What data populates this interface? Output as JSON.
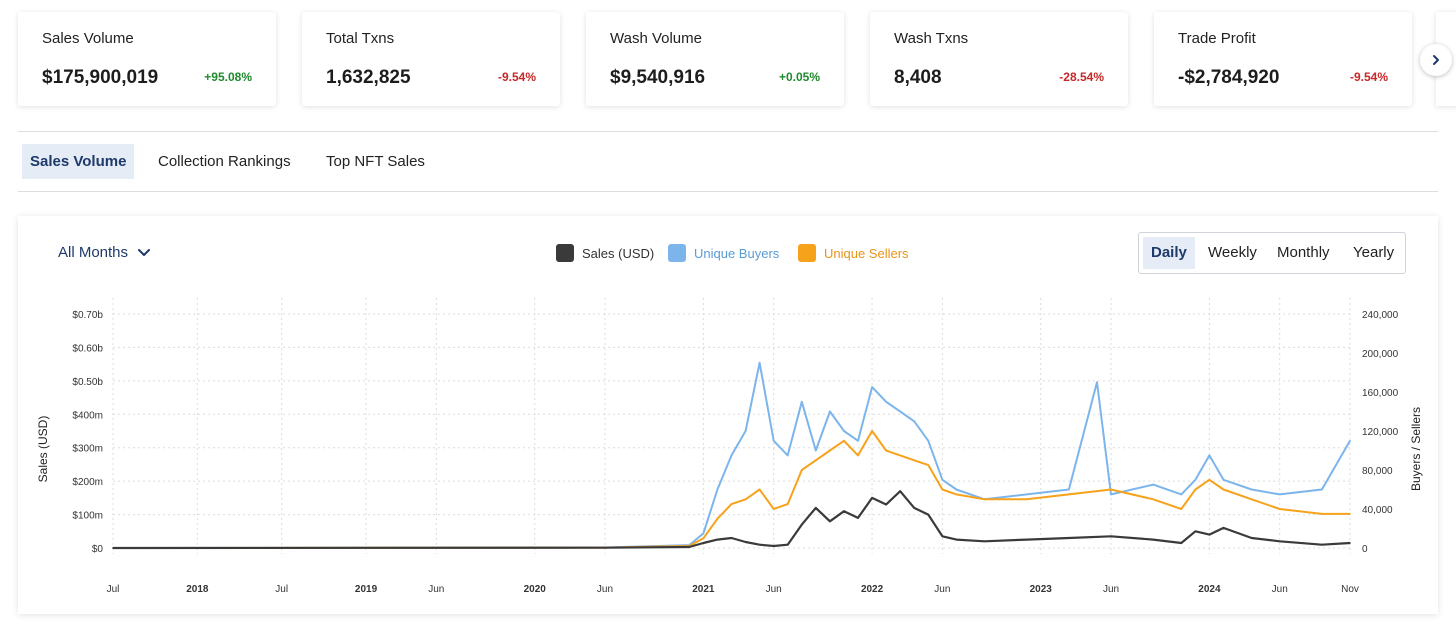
{
  "stats": [
    {
      "label": "Sales Volume",
      "value": "$175,900,019",
      "delta": "+95.08%",
      "positive": true
    },
    {
      "label": "Total Txns",
      "value": "1,632,825",
      "delta": "-9.54%",
      "positive": false
    },
    {
      "label": "Wash Volume",
      "value": "$9,540,916",
      "delta": "+0.05%",
      "positive": true
    },
    {
      "label": "Wash Txns",
      "value": "8,408",
      "delta": "-28.54%",
      "positive": false
    },
    {
      "label": "Trade Profit",
      "value": "-$2,784,920",
      "delta": "-9.54%",
      "positive": false
    }
  ],
  "tabs": [
    "Sales Volume",
    "Collection Rankings",
    "Top NFT Sales"
  ],
  "controls": {
    "months_dropdown": "All Months",
    "periods": [
      "Daily",
      "Weekly",
      "Monthly",
      "Yearly"
    ]
  },
  "legend": [
    {
      "label": "Sales (USD)",
      "color": "#3a3a3a"
    },
    {
      "label": "Unique Buyers",
      "color": "#7cb5ec"
    },
    {
      "label": "Unique Sellers",
      "color": "#f7a21b"
    }
  ],
  "chart_data": {
    "type": "line",
    "x_start": "2017-07",
    "x_end": "2024-11",
    "x_ticks": [
      {
        "label": "Jul",
        "date": "2017-07",
        "bold": false
      },
      {
        "label": "2018",
        "date": "2018-01",
        "bold": true
      },
      {
        "label": "Jul",
        "date": "2018-07",
        "bold": false
      },
      {
        "label": "2019",
        "date": "2019-01",
        "bold": true
      },
      {
        "label": "Jun",
        "date": "2019-06",
        "bold": false
      },
      {
        "label": "2020",
        "date": "2020-01",
        "bold": true
      },
      {
        "label": "Jun",
        "date": "2020-06",
        "bold": false
      },
      {
        "label": "2021",
        "date": "2021-01",
        "bold": true
      },
      {
        "label": "Jun",
        "date": "2021-06",
        "bold": false
      },
      {
        "label": "2022",
        "date": "2022-01",
        "bold": true
      },
      {
        "label": "Jun",
        "date": "2022-06",
        "bold": false
      },
      {
        "label": "2023",
        "date": "2023-01",
        "bold": true
      },
      {
        "label": "Jun",
        "date": "2023-06",
        "bold": false
      },
      {
        "label": "2024",
        "date": "2024-01",
        "bold": true
      },
      {
        "label": "Jun",
        "date": "2024-06",
        "bold": false
      },
      {
        "label": "Nov",
        "date": "2024-11",
        "bold": false
      }
    ],
    "y_left": {
      "label": "Sales (USD)",
      "range": [
        0,
        700
      ],
      "unit": "millions",
      "ticks": [
        {
          "v": 0,
          "label": "$0"
        },
        {
          "v": 100,
          "label": "$100m"
        },
        {
          "v": 200,
          "label": "$200m"
        },
        {
          "v": 300,
          "label": "$300m"
        },
        {
          "v": 400,
          "label": "$400m"
        },
        {
          "v": 500,
          "label": "$0.50b"
        },
        {
          "v": 600,
          "label": "$0.60b"
        },
        {
          "v": 700,
          "label": "$0.70b"
        }
      ]
    },
    "y_right": {
      "label": "Buyers / Sellers",
      "range": [
        0,
        240000
      ],
      "ticks": [
        {
          "v": 0,
          "label": "0"
        },
        {
          "v": 40000,
          "label": "40,000"
        },
        {
          "v": 80000,
          "label": "80,000"
        },
        {
          "v": 120000,
          "label": "120,000"
        },
        {
          "v": 160000,
          "label": "160,000"
        },
        {
          "v": 200000,
          "label": "200,000"
        },
        {
          "v": 240000,
          "label": "240,000"
        }
      ]
    },
    "series": [
      {
        "name": "Sales (USD)",
        "axis": "left",
        "color": "#3a3a3a",
        "x": [
          "2017-07",
          "2020-06",
          "2020-12",
          "2021-01",
          "2021-02",
          "2021-03",
          "2021-04",
          "2021-05",
          "2021-06",
          "2021-07",
          "2021-08",
          "2021-09",
          "2021-10",
          "2021-11",
          "2021-12",
          "2022-01",
          "2022-02",
          "2022-03",
          "2022-04",
          "2022-05",
          "2022-06",
          "2022-07",
          "2022-09",
          "2022-12",
          "2023-03",
          "2023-06",
          "2023-09",
          "2023-11",
          "2023-12",
          "2024-01",
          "2024-02",
          "2024-04",
          "2024-06",
          "2024-09",
          "2024-11"
        ],
        "values": [
          0,
          1,
          3,
          15,
          25,
          30,
          18,
          10,
          6,
          10,
          70,
          120,
          80,
          110,
          90,
          150,
          130,
          170,
          120,
          100,
          35,
          25,
          20,
          25,
          30,
          35,
          25,
          15,
          50,
          40,
          60,
          30,
          20,
          10,
          15
        ]
      },
      {
        "name": "Unique Buyers",
        "axis": "right",
        "color": "#7cb5ec",
        "x": [
          "2017-07",
          "2020-06",
          "2020-12",
          "2021-01",
          "2021-02",
          "2021-03",
          "2021-04",
          "2021-05",
          "2021-06",
          "2021-07",
          "2021-08",
          "2021-09",
          "2021-10",
          "2021-11",
          "2021-12",
          "2022-01",
          "2022-02",
          "2022-03",
          "2022-04",
          "2022-05",
          "2022-06",
          "2022-07",
          "2022-09",
          "2022-12",
          "2023-03",
          "2023-05",
          "2023-06",
          "2023-09",
          "2023-11",
          "2023-12",
          "2024-01",
          "2024-02",
          "2024-04",
          "2024-06",
          "2024-09",
          "2024-11"
        ],
        "values": [
          0,
          500,
          3000,
          15000,
          60000,
          95000,
          120000,
          190000,
          110000,
          95000,
          150000,
          100000,
          140000,
          120000,
          110000,
          165000,
          150000,
          140000,
          130000,
          110000,
          70000,
          60000,
          50000,
          55000,
          60000,
          170000,
          55000,
          65000,
          55000,
          70000,
          95000,
          70000,
          60000,
          55000,
          60000,
          110000
        ]
      },
      {
        "name": "Unique Sellers",
        "axis": "right",
        "color": "#f7a21b",
        "x": [
          "2017-07",
          "2020-06",
          "2020-12",
          "2021-01",
          "2021-02",
          "2021-03",
          "2021-04",
          "2021-05",
          "2021-06",
          "2021-07",
          "2021-08",
          "2021-09",
          "2021-10",
          "2021-11",
          "2021-12",
          "2022-01",
          "2022-02",
          "2022-03",
          "2022-04",
          "2022-05",
          "2022-06",
          "2022-07",
          "2022-09",
          "2022-12",
          "2023-03",
          "2023-06",
          "2023-09",
          "2023-11",
          "2023-12",
          "2024-01",
          "2024-02",
          "2024-04",
          "2024-06",
          "2024-09",
          "2024-11"
        ],
        "values": [
          0,
          400,
          2000,
          10000,
          30000,
          45000,
          50000,
          60000,
          40000,
          45000,
          80000,
          90000,
          100000,
          110000,
          95000,
          120000,
          100000,
          95000,
          90000,
          85000,
          60000,
          55000,
          50000,
          50000,
          55000,
          60000,
          50000,
          40000,
          60000,
          70000,
          60000,
          50000,
          40000,
          35000,
          35000
        ]
      }
    ]
  }
}
